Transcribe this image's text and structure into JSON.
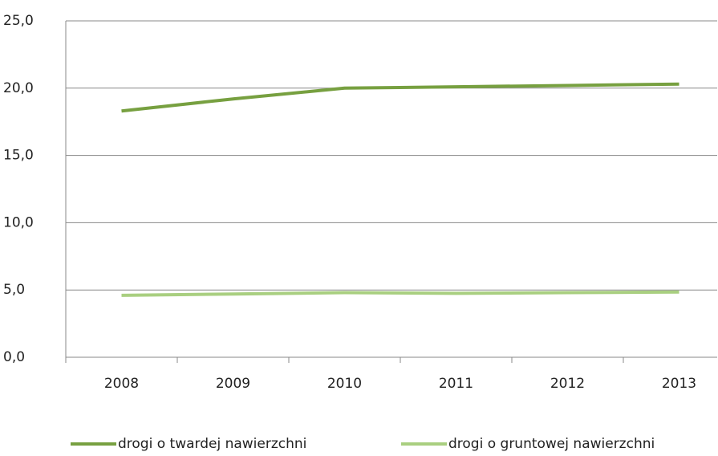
{
  "chart_data": {
    "type": "line",
    "categories": [
      "2008",
      "2009",
      "2010",
      "2011",
      "2012",
      "2013"
    ],
    "series": [
      {
        "name": "drogi o twardej nawierzchni",
        "color": "#77a040",
        "values": [
          18.3,
          19.2,
          20.0,
          20.1,
          20.2,
          20.3
        ]
      },
      {
        "name": "drogi o gruntowej nawierzchni",
        "color": "#a9cf80",
        "values": [
          4.6,
          4.7,
          4.8,
          4.75,
          4.8,
          4.85
        ]
      }
    ],
    "ylim": [
      0,
      25
    ],
    "yticks": [
      {
        "value": 0,
        "label": "0,0"
      },
      {
        "value": 5,
        "label": "5,0"
      },
      {
        "value": 10,
        "label": "10,0"
      },
      {
        "value": 15,
        "label": "15,0"
      },
      {
        "value": 20,
        "label": "20,0"
      },
      {
        "value": 25,
        "label": "25,0"
      }
    ],
    "grid": true,
    "legend": "bottom"
  }
}
